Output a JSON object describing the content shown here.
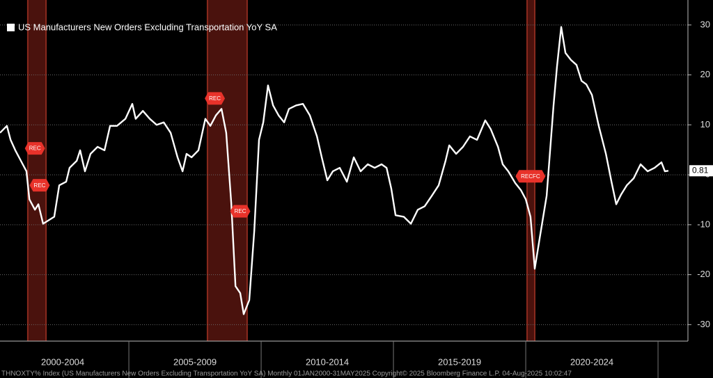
{
  "chart_data": {
    "type": "line",
    "title": "US Manufacturers New Orders Excluding Transportation YoY SA",
    "source": "THNOXTY% Index (US Manufacturers New Orders Excluding Transportation YoY SA) Monthly 01JAN2000-31MAY2025 Copyright© 2025 Bloomberg Finance L.P. 04-Aug-2025 10:02:47",
    "x": [
      2000.13,
      2000.39,
      2000.53,
      2000.71,
      2000.92,
      2001.13,
      2001.24,
      2001.45,
      2001.58,
      2001.76,
      2001.97,
      2002.18,
      2002.37,
      2002.63,
      2002.76,
      2003.03,
      2003.16,
      2003.34,
      2003.55,
      2003.82,
      2004.08,
      2004.29,
      2004.55,
      2004.87,
      2005.13,
      2005.26,
      2005.53,
      2005.79,
      2006.05,
      2006.32,
      2006.58,
      2006.84,
      2007.03,
      2007.18,
      2007.37,
      2007.63,
      2007.89,
      2008.08,
      2008.29,
      2008.5,
      2008.68,
      2008.87,
      2009.03,
      2009.21,
      2009.34,
      2009.55,
      2009.74,
      2009.92,
      2010.08,
      2010.26,
      2010.45,
      2010.66,
      2010.87,
      2011.05,
      2011.32,
      2011.58,
      2011.84,
      2012.11,
      2012.29,
      2012.5,
      2012.71,
      2012.97,
      2013.24,
      2013.5,
      2013.76,
      2014.03,
      2014.29,
      2014.55,
      2014.74,
      2014.92,
      2015.08,
      2015.39,
      2015.66,
      2015.92,
      2016.18,
      2016.45,
      2016.71,
      2016.97,
      2017.11,
      2017.37,
      2017.63,
      2017.89,
      2018.16,
      2018.47,
      2018.68,
      2018.95,
      2019.13,
      2019.34,
      2019.61,
      2019.82,
      2020.0,
      2020.18,
      2020.34,
      2020.53,
      2020.79,
      2021.05,
      2021.18,
      2021.34,
      2021.5,
      2021.71,
      2021.92,
      2022.11,
      2022.29,
      2022.5,
      2022.76,
      2023.03,
      2023.24,
      2023.42,
      2023.61,
      2023.82,
      2024.08,
      2024.34,
      2024.61,
      2024.87,
      2025.13,
      2025.26,
      2025.39
    ],
    "values": [
      8.4,
      9.8,
      7.0,
      4.9,
      2.8,
      0.7,
      -4.9,
      -7.0,
      -5.9,
      -9.8,
      -9.1,
      -8.4,
      -2.1,
      -1.4,
      1.4,
      2.8,
      4.9,
      0.7,
      4.2,
      5.6,
      4.9,
      9.8,
      9.8,
      11.2,
      14.2,
      11.2,
      12.8,
      11.2,
      10.0,
      10.5,
      8.4,
      3.5,
      0.7,
      4.2,
      3.5,
      4.9,
      11.2,
      9.8,
      11.9,
      13.2,
      8.4,
      -5.6,
      -22.3,
      -23.7,
      -27.9,
      -25.1,
      -11.2,
      7.0,
      10.5,
      17.9,
      13.9,
      11.9,
      10.5,
      13.2,
      13.9,
      14.2,
      11.9,
      7.7,
      3.5,
      -1.1,
      0.7,
      1.4,
      -1.4,
      3.5,
      0.7,
      2.1,
      1.4,
      2.1,
      1.4,
      -2.8,
      -8.1,
      -8.4,
      -9.8,
      -7.0,
      -6.3,
      -4.2,
      -2.1,
      2.8,
      5.9,
      4.2,
      5.6,
      7.7,
      7.0,
      10.9,
      9.1,
      5.6,
      2.1,
      0.7,
      -1.7,
      -3.1,
      -4.9,
      -8.4,
      -18.8,
      -12.6,
      -4.2,
      13.9,
      21.6,
      29.6,
      24.4,
      23.0,
      22.0,
      18.8,
      18.1,
      16.0,
      9.8,
      4.2,
      -1.4,
      -5.9,
      -3.9,
      -2.1,
      -0.7,
      2.1,
      0.7,
      1.4,
      2.5,
      0.7,
      0.81
    ],
    "color": "#ffffff",
    "xlim": [
      2000.13,
      2026.13
    ],
    "xticks": [
      2005,
      2010,
      2015,
      2020,
      2025
    ],
    "periods": [
      "2000-2004",
      "2005-2009",
      "2010-2014",
      "2015-2019",
      "2020-2024"
    ],
    "ylim": [
      -33.3,
      35
    ],
    "yticks": [
      30,
      20,
      10,
      0,
      -10,
      -20,
      -30
    ],
    "y_axis_side": "right",
    "grid": true,
    "recessions": [
      [
        2001.18,
        2001.87
      ],
      [
        2007.97,
        2009.47
      ],
      [
        2020.05,
        2020.34
      ]
    ],
    "annotations": [
      {
        "text": "REC",
        "x": 2001.45,
        "y": 5.3
      },
      {
        "text": "REC",
        "x": 2001.63,
        "y": -2.1
      },
      {
        "text": "REC",
        "x": 2008.25,
        "y": 15.3
      },
      {
        "text": "REC",
        "x": 2009.21,
        "y": -7.3
      },
      {
        "text": "RECFC",
        "x": 2020.18,
        "y": -0.3
      }
    ]
  }
}
